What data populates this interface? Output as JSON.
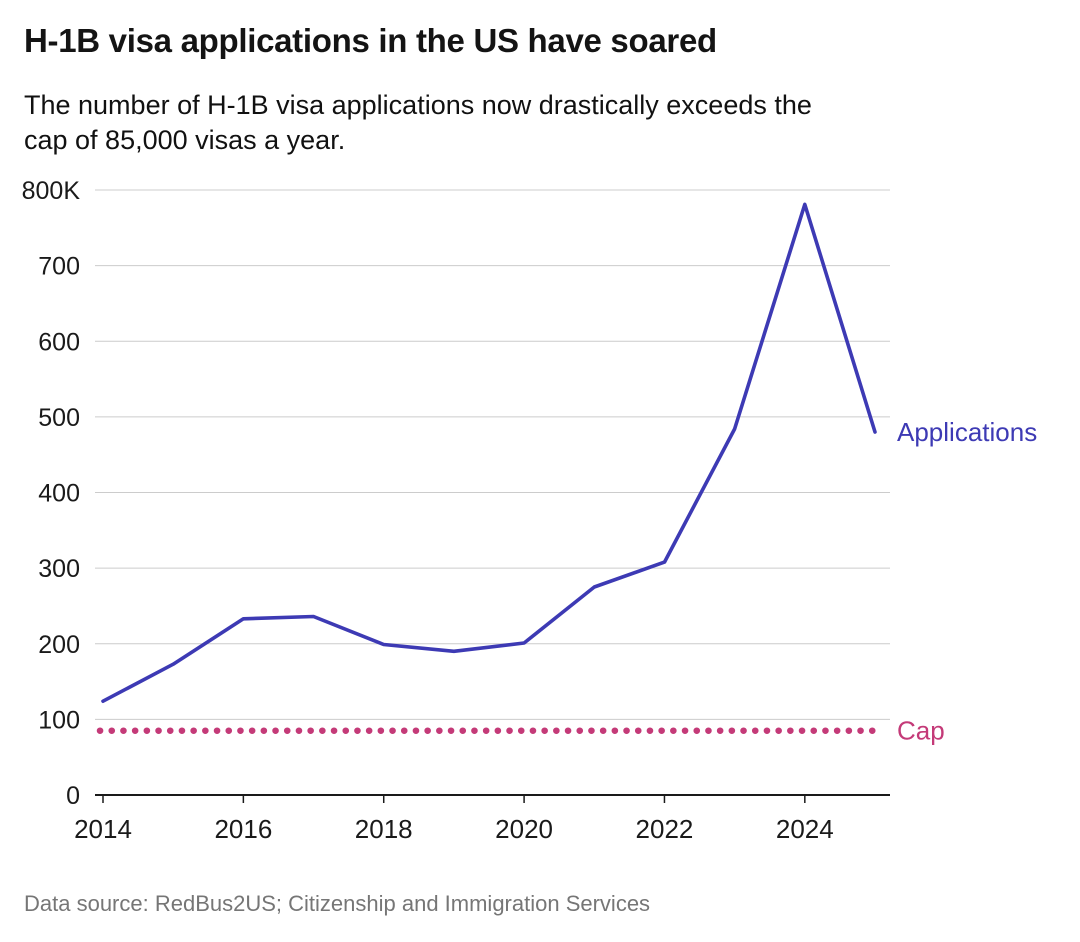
{
  "chart_data": {
    "type": "line",
    "title": "H-1B visa applications in the US have soared",
    "subtitle": "The number of H-1B visa applications now drastically exceeds the cap of 85,000 visas a year.",
    "source": "Data source: RedBus2US; Citizenship and Immigration Services",
    "unit": "thousands of applications",
    "x": [
      2014,
      2015,
      2016,
      2017,
      2018,
      2019,
      2020,
      2021,
      2022,
      2023,
      2024,
      2025
    ],
    "series": [
      {
        "name": "Applications",
        "color": "#3d3ab4",
        "values": [
          124,
          173,
          233,
          236,
          199,
          190,
          201,
          275,
          308,
          484,
          781,
          480
        ]
      }
    ],
    "reference_line": {
      "name": "Cap",
      "value": 85,
      "color": "#c43a78",
      "style": "dotted"
    },
    "ylim": [
      0,
      800
    ],
    "y_ticks": [
      {
        "value": 0,
        "label": "0"
      },
      {
        "value": 100,
        "label": "100"
      },
      {
        "value": 200,
        "label": "200"
      },
      {
        "value": 300,
        "label": "300"
      },
      {
        "value": 400,
        "label": "400"
      },
      {
        "value": 500,
        "label": "500"
      },
      {
        "value": 600,
        "label": "600"
      },
      {
        "value": 700,
        "label": "700"
      },
      {
        "value": 800,
        "label": "800K"
      }
    ],
    "x_ticks": [
      2014,
      2016,
      2018,
      2020,
      2022,
      2024
    ],
    "grid": "horizontal",
    "legend_position": "right-inline",
    "colors": {
      "gridline": "#cccccc",
      "axis": "#1a1a1a",
      "tick_label": "#1a1a1a"
    }
  }
}
